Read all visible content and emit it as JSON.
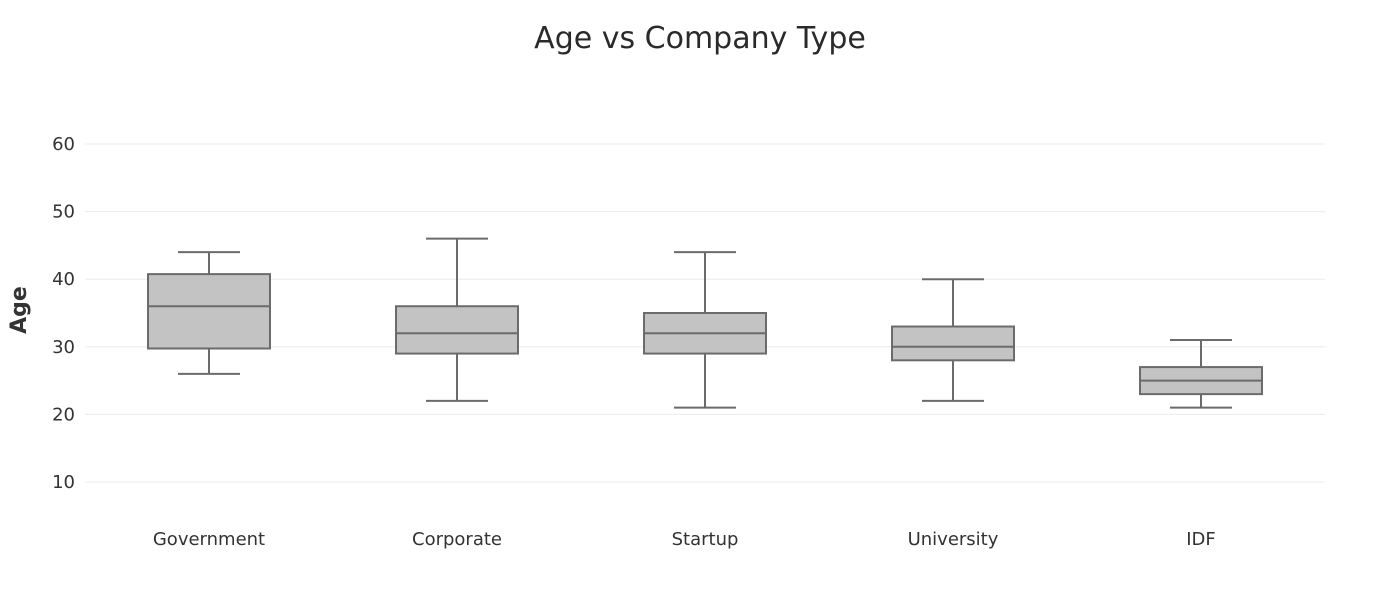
{
  "chart_data": {
    "type": "box",
    "title": "Age vs Company Type",
    "xlabel": "",
    "ylabel": "Age",
    "ylim": [
      7,
      64
    ],
    "yticks": [
      10,
      20,
      30,
      40,
      50,
      60
    ],
    "grid": true,
    "legend": "none",
    "categories": [
      "Government",
      "Corporate",
      "Startup",
      "University",
      "IDF"
    ],
    "boxes": [
      {
        "category": "Government",
        "min": 26,
        "q1": 29.75,
        "median": 36,
        "q3": 40.75,
        "max": 44
      },
      {
        "category": "Corporate",
        "min": 22,
        "q1": 29,
        "median": 32,
        "q3": 36,
        "max": 46
      },
      {
        "category": "Startup",
        "min": 21,
        "q1": 29,
        "median": 32,
        "q3": 35,
        "max": 44
      },
      {
        "category": "University",
        "min": 22,
        "q1": 28,
        "median": 30,
        "q3": 33,
        "max": 40
      },
      {
        "category": "IDF",
        "min": 21,
        "q1": 23,
        "median": 25,
        "q3": 27,
        "max": 31
      }
    ],
    "colors": {
      "box_fill": "#c3c3c3",
      "box_stroke": "#6b6b6b",
      "grid": "#ececec"
    }
  }
}
